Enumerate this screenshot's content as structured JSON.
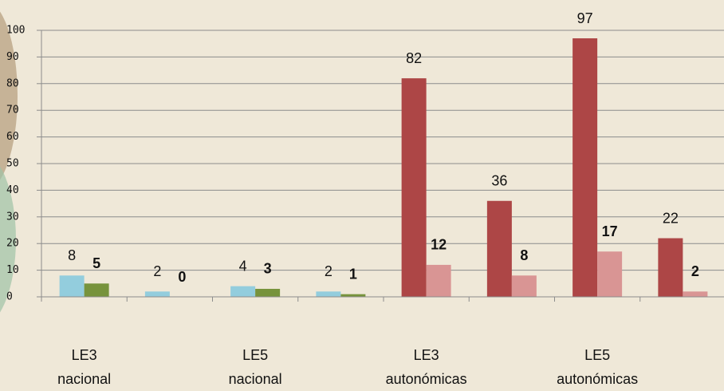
{
  "chart_data": {
    "type": "bar",
    "categories": [
      "LE3\nnacional",
      null,
      "LE5\nnacional",
      null,
      "LE3\nautonómicas",
      null,
      "LE5\nautonómicas",
      null
    ],
    "series": [
      {
        "color": "#93cddd",
        "values": [
          8,
          2,
          4,
          2,
          null,
          null,
          null,
          null
        ]
      },
      {
        "color": "#77933c",
        "values": [
          5,
          0,
          3,
          1,
          null,
          null,
          null,
          null
        ],
        "label_bold": true
      },
      {
        "color": "#ad4646",
        "values": [
          null,
          null,
          null,
          null,
          82,
          36,
          97,
          22
        ]
      },
      {
        "color": "#d99594",
        "values": [
          null,
          null,
          null,
          null,
          12,
          8,
          17,
          2
        ],
        "label_bold": true
      }
    ],
    "ylim": [
      0,
      100
    ],
    "yticks": [
      0,
      10,
      20,
      30,
      40,
      50,
      60,
      70,
      80,
      90,
      100
    ],
    "grid": true
  }
}
